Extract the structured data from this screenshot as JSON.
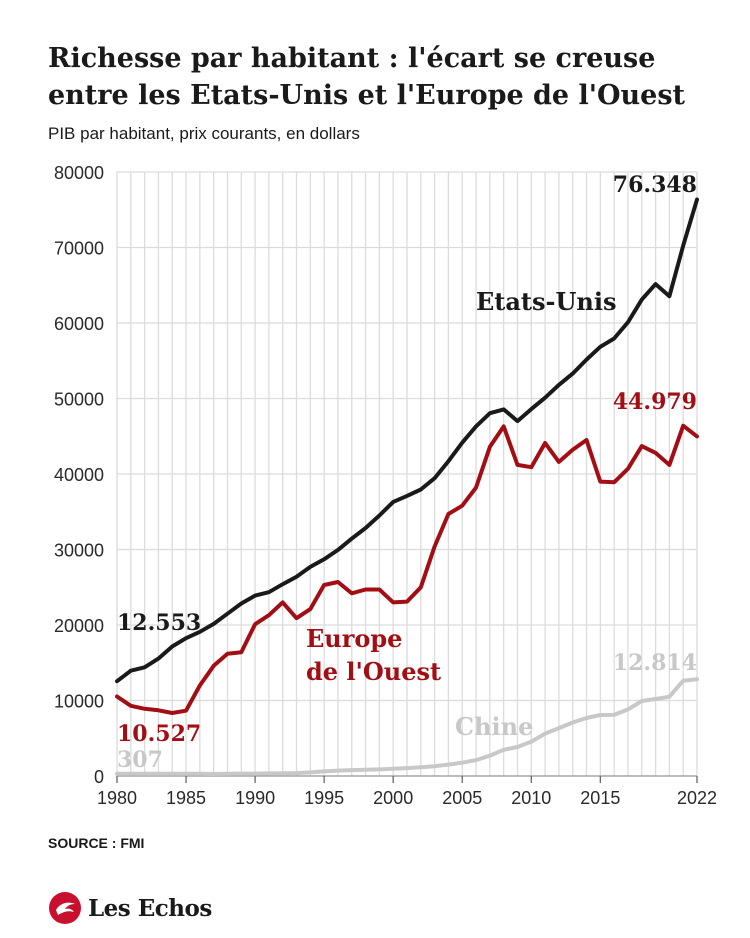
{
  "title": "Richesse par habitant : l'écart se creuse entre les Etats-Unis et l'Europe de l'Ouest",
  "subtitle": "PIB par habitant, prix courants, en dollars",
  "source": "SOURCE : FMI",
  "brand": "Les Echos",
  "colors": {
    "usa": "#1a1a1a",
    "europe": "#a30d14",
    "china": "#c8c8c8",
    "grid": "#dcdcdc",
    "brand_red": "#c8102e"
  },
  "chart_data": {
    "type": "line",
    "title": "",
    "xlabel": "",
    "ylabel": "",
    "xlim": [
      1980,
      2022
    ],
    "ylim": [
      0,
      80000
    ],
    "y_ticks": [
      "0",
      "10000",
      "20000",
      "30000",
      "40000",
      "50000",
      "60000",
      "70000",
      "80000"
    ],
    "x_ticks": [
      "1980",
      "1985",
      "1990",
      "1995",
      "2000",
      "2005",
      "2010",
      "2015",
      "2022"
    ],
    "grid": true,
    "legend": "inline labels",
    "x": [
      1980,
      1981,
      1982,
      1983,
      1984,
      1985,
      1986,
      1987,
      1988,
      1989,
      1990,
      1991,
      1992,
      1993,
      1994,
      1995,
      1996,
      1997,
      1998,
      1999,
      2000,
      2001,
      2002,
      2003,
      2004,
      2005,
      2006,
      2007,
      2008,
      2009,
      2010,
      2011,
      2012,
      2013,
      2014,
      2015,
      2016,
      2017,
      2018,
      2019,
      2020,
      2021,
      2022
    ],
    "series": [
      {
        "name": "Etats-Unis",
        "color": "#1a1a1a",
        "values": [
          12553,
          13950,
          14400,
          15550,
          17150,
          18250,
          19100,
          20150,
          21500,
          22850,
          23900,
          24350,
          25400,
          26400,
          27700,
          28700,
          29950,
          31450,
          32850,
          34500,
          36300,
          37100,
          37950,
          39450,
          41700,
          44150,
          46300,
          48050,
          48550,
          47000,
          48600,
          50100,
          51800,
          53300,
          55150,
          56850,
          57950,
          60100,
          63100,
          65150,
          63550,
          70250,
          76348
        ],
        "labels": [
          {
            "text": "Etats-Unis"
          },
          {
            "text": "12.553",
            "at": 1980
          },
          {
            "text": "76.348",
            "at": 2022
          }
        ]
      },
      {
        "name": "Europe de l'Ouest",
        "color": "#a30d14",
        "values": [
          10527,
          9300,
          8900,
          8700,
          8350,
          8650,
          12000,
          14600,
          16200,
          16400,
          20100,
          21300,
          23000,
          20900,
          22100,
          25300,
          25700,
          24200,
          24700,
          24700,
          23000,
          23100,
          25000,
          30400,
          34700,
          35800,
          38200,
          43600,
          46300,
          41200,
          40900,
          44100,
          41600,
          43200,
          44500,
          39000,
          38900,
          40700,
          43700,
          42800,
          41200,
          46400,
          44979
        ],
        "labels": [
          {
            "text": "Europe"
          },
          {
            "text": "de l'Ouest"
          },
          {
            "text": "10.527",
            "at": 1980
          },
          {
            "text": "44.979",
            "at": 2022
          }
        ]
      },
      {
        "name": "Chine",
        "color": "#c8c8c8",
        "values": [
          307,
          300,
          290,
          300,
          310,
          300,
          290,
          260,
          310,
          320,
          320,
          340,
          370,
          380,
          480,
          610,
          710,
          780,
          830,
          880,
          960,
          1050,
          1150,
          1300,
          1510,
          1760,
          2100,
          2700,
          3470,
          3840,
          4550,
          5620,
          6340,
          7080,
          7680,
          8080,
          8090,
          8820,
          9930,
          10200,
          10500,
          12620,
          12814
        ],
        "labels": [
          {
            "text": "Chine"
          },
          {
            "text": "307",
            "at": 1980
          },
          {
            "text": "12.814",
            "at": 2022
          }
        ]
      }
    ]
  }
}
